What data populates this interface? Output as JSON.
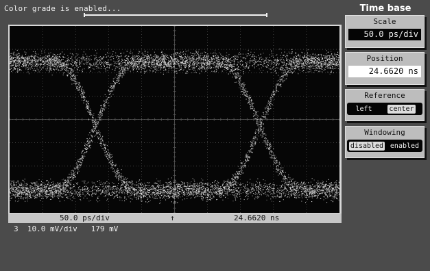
{
  "status": {
    "message": "Color grade is enabled...",
    "progress": 1.0
  },
  "display": {
    "waveform": "eye-diagram",
    "grid": {
      "divisions_x": 10,
      "divisions_y": 8
    }
  },
  "readout": {
    "scale": "50.0 ps/div",
    "marker": "↑",
    "position": "24.6620 ns"
  },
  "channel": {
    "number": "3",
    "vdiv": "10.0 mV/div",
    "offset": "179 mV"
  },
  "panel": {
    "title": "Time base",
    "scale": {
      "label": "Scale",
      "value": "50.0 ps/div"
    },
    "position": {
      "label": "Position",
      "value": "24.6620 ns"
    },
    "reference": {
      "label": "Reference",
      "options": [
        "left",
        "center"
      ],
      "selected": "center"
    },
    "windowing": {
      "label": "Windowing",
      "options": [
        "disabled",
        "enabled"
      ],
      "selected": "disabled"
    }
  },
  "colors": {
    "screen_bg": "#060606",
    "trace": "#e8e8e8",
    "grid": "#5a5a5a",
    "chassis": "#4b4b4b"
  }
}
